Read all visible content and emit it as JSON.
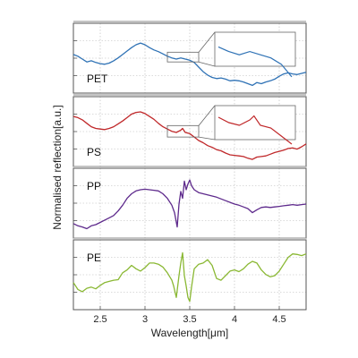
{
  "chart_data": {
    "type": "line",
    "title": "",
    "xlabel": "Wavelength[μm]",
    "ylabel": "Normalised reflection[a.u.]",
    "xlim": [
      2.2,
      4.8
    ],
    "x_ticks": [
      "2.5",
      "3",
      "3.5",
      "4",
      "4.5"
    ],
    "x_tick_values": [
      2.5,
      3.0,
      3.5,
      4.0,
      4.5
    ],
    "grid": true,
    "y_range": [
      0,
      1
    ],
    "series": [
      {
        "name": "PET",
        "color": "#2f72b5",
        "inset": {
          "x_from": 3.25,
          "x_to": 3.6,
          "y_from": 0.45,
          "y_to": 0.62
        },
        "points": [
          [
            2.2,
            0.58
          ],
          [
            2.25,
            0.55
          ],
          [
            2.3,
            0.5
          ],
          [
            2.35,
            0.45
          ],
          [
            2.4,
            0.47
          ],
          [
            2.45,
            0.44
          ],
          [
            2.5,
            0.42
          ],
          [
            2.55,
            0.41
          ],
          [
            2.6,
            0.43
          ],
          [
            2.65,
            0.47
          ],
          [
            2.7,
            0.52
          ],
          [
            2.75,
            0.58
          ],
          [
            2.8,
            0.64
          ],
          [
            2.85,
            0.7
          ],
          [
            2.9,
            0.75
          ],
          [
            2.95,
            0.78
          ],
          [
            3.0,
            0.75
          ],
          [
            3.05,
            0.7
          ],
          [
            3.1,
            0.66
          ],
          [
            3.15,
            0.63
          ],
          [
            3.2,
            0.59
          ],
          [
            3.25,
            0.55
          ],
          [
            3.3,
            0.52
          ],
          [
            3.35,
            0.5
          ],
          [
            3.4,
            0.52
          ],
          [
            3.45,
            0.5
          ],
          [
            3.5,
            0.48
          ],
          [
            3.55,
            0.44
          ],
          [
            3.6,
            0.36
          ],
          [
            3.65,
            0.28
          ],
          [
            3.7,
            0.22
          ],
          [
            3.75,
            0.18
          ],
          [
            3.8,
            0.16
          ],
          [
            3.85,
            0.17
          ],
          [
            3.9,
            0.15
          ],
          [
            3.95,
            0.12
          ],
          [
            4.0,
            0.13
          ],
          [
            4.05,
            0.12
          ],
          [
            4.1,
            0.1
          ],
          [
            4.15,
            0.07
          ],
          [
            4.2,
            0.04
          ],
          [
            4.25,
            0.09
          ],
          [
            4.3,
            0.07
          ],
          [
            4.35,
            0.1
          ],
          [
            4.4,
            0.12
          ],
          [
            4.45,
            0.15
          ],
          [
            4.5,
            0.2
          ],
          [
            4.55,
            0.24
          ],
          [
            4.6,
            0.26
          ],
          [
            4.65,
            0.24
          ],
          [
            4.7,
            0.23
          ],
          [
            4.75,
            0.25
          ],
          [
            4.8,
            0.27
          ]
        ]
      },
      {
        "name": "PS",
        "color": "#c0282a",
        "inset": {
          "x_from": 3.25,
          "x_to": 3.6,
          "y_from": 0.42,
          "y_to": 0.62
        },
        "points": [
          [
            2.2,
            0.78
          ],
          [
            2.25,
            0.76
          ],
          [
            2.3,
            0.72
          ],
          [
            2.35,
            0.66
          ],
          [
            2.4,
            0.6
          ],
          [
            2.45,
            0.57
          ],
          [
            2.5,
            0.56
          ],
          [
            2.55,
            0.55
          ],
          [
            2.6,
            0.57
          ],
          [
            2.65,
            0.6
          ],
          [
            2.7,
            0.65
          ],
          [
            2.75,
            0.7
          ],
          [
            2.8,
            0.76
          ],
          [
            2.85,
            0.82
          ],
          [
            2.9,
            0.85
          ],
          [
            2.95,
            0.86
          ],
          [
            3.0,
            0.83
          ],
          [
            3.05,
            0.78
          ],
          [
            3.1,
            0.73
          ],
          [
            3.15,
            0.66
          ],
          [
            3.2,
            0.6
          ],
          [
            3.25,
            0.56
          ],
          [
            3.3,
            0.52
          ],
          [
            3.35,
            0.5
          ],
          [
            3.4,
            0.54
          ],
          [
            3.42,
            0.57
          ],
          [
            3.45,
            0.5
          ],
          [
            3.5,
            0.48
          ],
          [
            3.55,
            0.42
          ],
          [
            3.6,
            0.36
          ],
          [
            3.65,
            0.32
          ],
          [
            3.7,
            0.27
          ],
          [
            3.75,
            0.24
          ],
          [
            3.8,
            0.2
          ],
          [
            3.85,
            0.18
          ],
          [
            3.9,
            0.14
          ],
          [
            3.95,
            0.11
          ],
          [
            4.0,
            0.1
          ],
          [
            4.05,
            0.09
          ],
          [
            4.1,
            0.08
          ],
          [
            4.15,
            0.05
          ],
          [
            4.2,
            0.03
          ],
          [
            4.25,
            0.07
          ],
          [
            4.3,
            0.08
          ],
          [
            4.35,
            0.09
          ],
          [
            4.4,
            0.12
          ],
          [
            4.45,
            0.15
          ],
          [
            4.5,
            0.17
          ],
          [
            4.55,
            0.19
          ],
          [
            4.6,
            0.22
          ],
          [
            4.65,
            0.23
          ],
          [
            4.7,
            0.21
          ],
          [
            4.75,
            0.25
          ],
          [
            4.8,
            0.3
          ]
        ]
      },
      {
        "name": "PP",
        "color": "#5e2a8c",
        "points": [
          [
            2.2,
            0.16
          ],
          [
            2.25,
            0.12
          ],
          [
            2.3,
            0.1
          ],
          [
            2.35,
            0.07
          ],
          [
            2.4,
            0.12
          ],
          [
            2.45,
            0.14
          ],
          [
            2.5,
            0.18
          ],
          [
            2.55,
            0.22
          ],
          [
            2.6,
            0.26
          ],
          [
            2.65,
            0.3
          ],
          [
            2.7,
            0.38
          ],
          [
            2.75,
            0.48
          ],
          [
            2.8,
            0.6
          ],
          [
            2.85,
            0.68
          ],
          [
            2.9,
            0.73
          ],
          [
            2.95,
            0.75
          ],
          [
            3.0,
            0.76
          ],
          [
            3.05,
            0.75
          ],
          [
            3.1,
            0.74
          ],
          [
            3.15,
            0.73
          ],
          [
            3.2,
            0.68
          ],
          [
            3.25,
            0.6
          ],
          [
            3.3,
            0.48
          ],
          [
            3.33,
            0.35
          ],
          [
            3.36,
            0.1
          ],
          [
            3.38,
            0.5
          ],
          [
            3.4,
            0.72
          ],
          [
            3.42,
            0.6
          ],
          [
            3.44,
            0.9
          ],
          [
            3.46,
            0.75
          ],
          [
            3.48,
            0.85
          ],
          [
            3.5,
            0.92
          ],
          [
            3.52,
            0.82
          ],
          [
            3.55,
            0.75
          ],
          [
            3.6,
            0.7
          ],
          [
            3.65,
            0.68
          ],
          [
            3.7,
            0.66
          ],
          [
            3.8,
            0.62
          ],
          [
            3.9,
            0.56
          ],
          [
            4.0,
            0.5
          ],
          [
            4.05,
            0.48
          ],
          [
            4.1,
            0.45
          ],
          [
            4.15,
            0.42
          ],
          [
            4.2,
            0.35
          ],
          [
            4.25,
            0.4
          ],
          [
            4.3,
            0.44
          ],
          [
            4.35,
            0.45
          ],
          [
            4.4,
            0.44
          ],
          [
            4.45,
            0.45
          ],
          [
            4.5,
            0.46
          ],
          [
            4.55,
            0.47
          ],
          [
            4.6,
            0.48
          ],
          [
            4.65,
            0.49
          ],
          [
            4.7,
            0.48
          ],
          [
            4.75,
            0.49
          ],
          [
            4.8,
            0.5
          ]
        ]
      },
      {
        "name": "PE",
        "color": "#8ab833",
        "points": [
          [
            2.2,
            0.38
          ],
          [
            2.25,
            0.26
          ],
          [
            2.3,
            0.22
          ],
          [
            2.35,
            0.28
          ],
          [
            2.4,
            0.3
          ],
          [
            2.45,
            0.27
          ],
          [
            2.5,
            0.33
          ],
          [
            2.55,
            0.38
          ],
          [
            2.6,
            0.4
          ],
          [
            2.65,
            0.42
          ],
          [
            2.7,
            0.43
          ],
          [
            2.75,
            0.55
          ],
          [
            2.8,
            0.6
          ],
          [
            2.85,
            0.68
          ],
          [
            2.9,
            0.62
          ],
          [
            2.95,
            0.58
          ],
          [
            3.0,
            0.64
          ],
          [
            3.05,
            0.72
          ],
          [
            3.1,
            0.72
          ],
          [
            3.15,
            0.7
          ],
          [
            3.2,
            0.65
          ],
          [
            3.25,
            0.55
          ],
          [
            3.3,
            0.42
          ],
          [
            3.32,
            0.32
          ],
          [
            3.35,
            0.12
          ],
          [
            3.38,
            0.5
          ],
          [
            3.4,
            0.72
          ],
          [
            3.42,
            0.9
          ],
          [
            3.44,
            0.5
          ],
          [
            3.46,
            0.32
          ],
          [
            3.48,
            0.12
          ],
          [
            3.5,
            0.05
          ],
          [
            3.52,
            0.3
          ],
          [
            3.55,
            0.62
          ],
          [
            3.6,
            0.7
          ],
          [
            3.65,
            0.72
          ],
          [
            3.7,
            0.78
          ],
          [
            3.75,
            0.68
          ],
          [
            3.8,
            0.45
          ],
          [
            3.85,
            0.42
          ],
          [
            3.9,
            0.5
          ],
          [
            3.95,
            0.58
          ],
          [
            4.0,
            0.6
          ],
          [
            4.05,
            0.57
          ],
          [
            4.1,
            0.62
          ],
          [
            4.15,
            0.7
          ],
          [
            4.2,
            0.75
          ],
          [
            4.25,
            0.72
          ],
          [
            4.3,
            0.6
          ],
          [
            4.35,
            0.52
          ],
          [
            4.4,
            0.48
          ],
          [
            4.45,
            0.5
          ],
          [
            4.5,
            0.58
          ],
          [
            4.55,
            0.7
          ],
          [
            4.6,
            0.82
          ],
          [
            4.65,
            0.88
          ],
          [
            4.7,
            0.87
          ],
          [
            4.75,
            0.85
          ],
          [
            4.8,
            0.88
          ]
        ]
      }
    ]
  }
}
